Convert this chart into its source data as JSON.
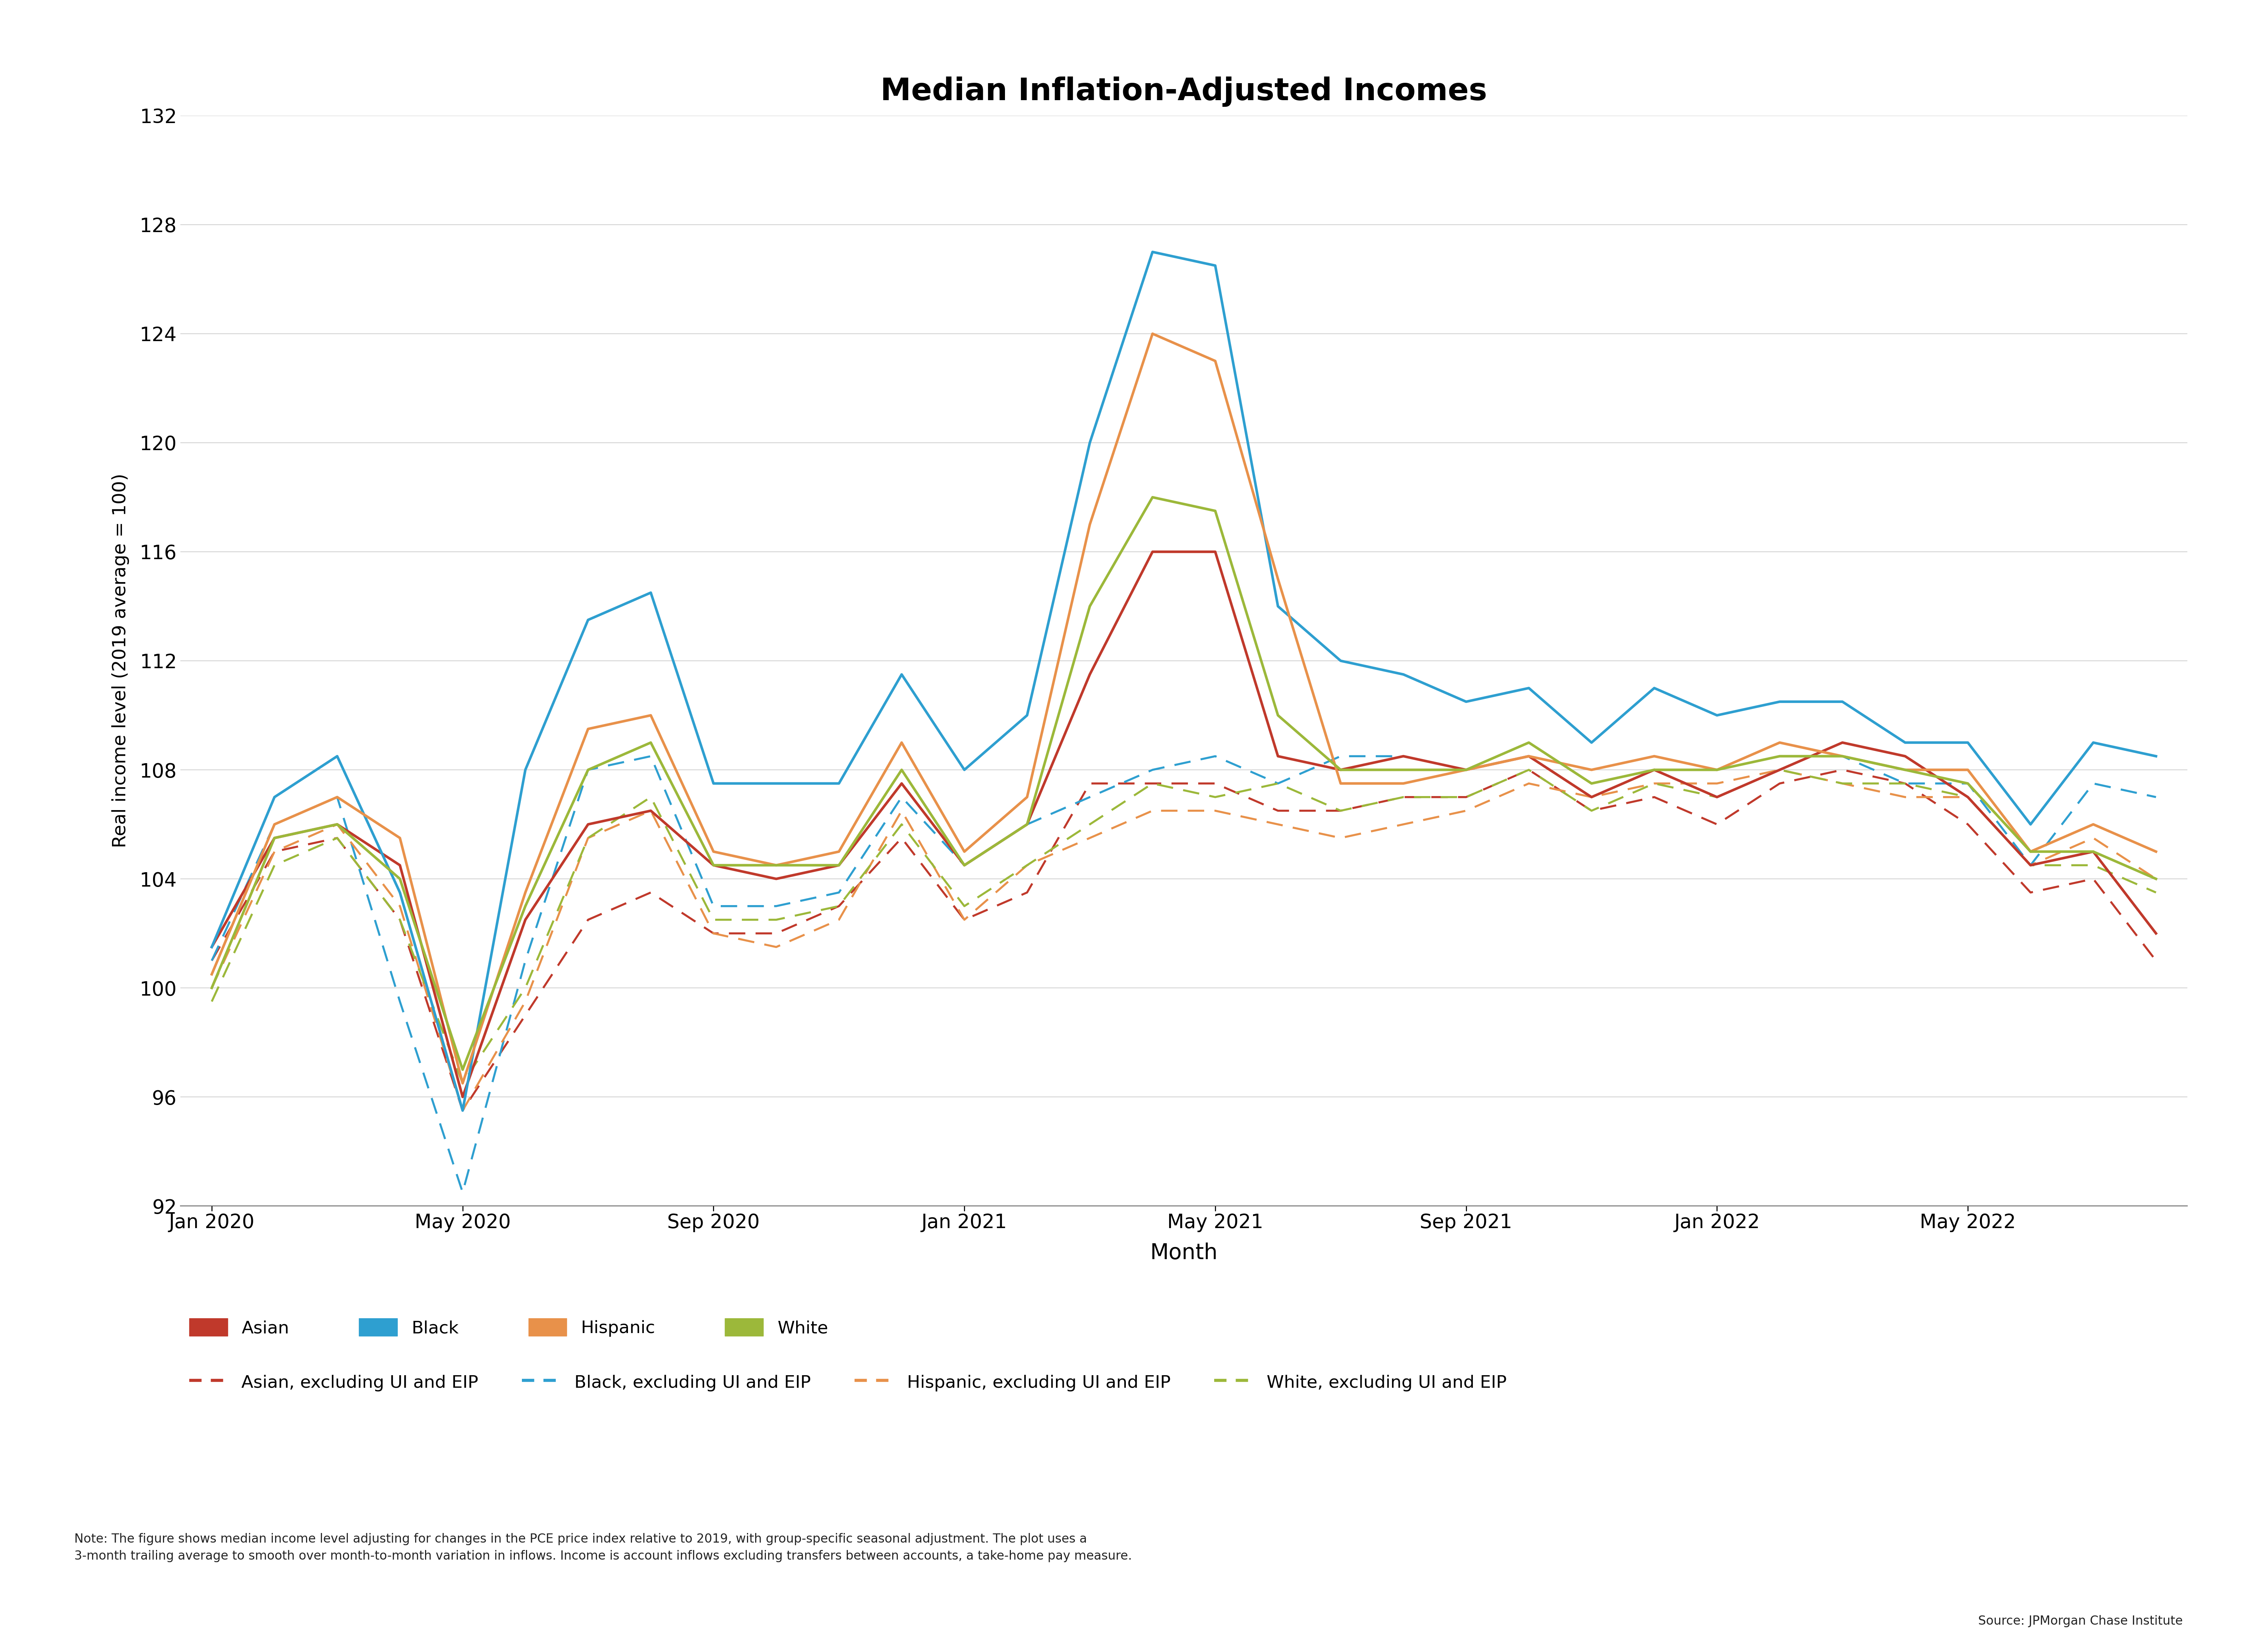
{
  "title": "Median Inflation-Adjusted Incomes",
  "xlabel": "Month",
  "ylabel": "Real income level (2019 average = 100)",
  "ylim": [
    92,
    132
  ],
  "yticks": [
    92,
    96,
    100,
    104,
    108,
    112,
    116,
    120,
    124,
    128,
    132
  ],
  "colors": {
    "Asian": "#C0392B",
    "Black": "#2E9FD0",
    "Hispanic": "#E8914A",
    "White": "#9CB83A"
  },
  "note": "Note: The figure shows median income level adjusting for changes in the PCE price index relative to 2019, with group-specific seasonal adjustment. The plot uses a\n3-month trailing average to smooth over month-to-month variation in inflows. Income is account inflows excluding transfers between accounts, a take-home pay measure.",
  "source": "Source: JPMorgan Chase Institute",
  "tick_positions": [
    0,
    4,
    8,
    12,
    16,
    20,
    24,
    28
  ],
  "tick_labels": [
    "Jan 2020",
    "May 2020",
    "Sep 2020",
    "Jan 2021",
    "May 2021",
    "Sep 2021",
    "Jan 2022",
    "May 2022"
  ],
  "Asian": [
    101.5,
    105.5,
    106.0,
    104.5,
    96.0,
    102.5,
    106.0,
    106.5,
    104.5,
    104.0,
    104.5,
    107.5,
    104.5,
    106.0,
    111.5,
    116.0,
    116.0,
    108.5,
    108.0,
    108.5,
    108.0,
    108.5,
    107.0,
    108.0,
    107.0,
    108.0,
    109.0,
    108.5,
    107.0,
    104.5,
    105.0,
    102.0
  ],
  "Asian_ex": [
    101.0,
    105.0,
    105.5,
    102.5,
    95.5,
    99.0,
    102.5,
    103.5,
    102.0,
    102.0,
    103.0,
    105.5,
    102.5,
    103.5,
    107.5,
    107.5,
    107.5,
    106.5,
    106.5,
    107.0,
    107.0,
    108.0,
    106.5,
    107.0,
    106.0,
    107.5,
    108.0,
    107.5,
    106.0,
    103.5,
    104.0,
    101.0
  ],
  "Black": [
    101.5,
    107.0,
    108.5,
    103.5,
    95.5,
    108.0,
    113.5,
    114.5,
    107.5,
    107.5,
    107.5,
    111.5,
    108.0,
    110.0,
    120.0,
    127.0,
    126.5,
    114.0,
    112.0,
    111.5,
    110.5,
    111.0,
    109.0,
    111.0,
    110.0,
    110.5,
    110.5,
    109.0,
    109.0,
    106.0,
    109.0,
    108.5
  ],
  "Black_ex": [
    101.0,
    106.0,
    107.0,
    99.5,
    92.5,
    101.0,
    108.0,
    108.5,
    103.0,
    103.0,
    103.5,
    107.0,
    104.5,
    106.0,
    107.0,
    108.0,
    108.5,
    107.5,
    108.5,
    108.5,
    108.0,
    108.5,
    107.0,
    108.0,
    108.0,
    108.5,
    108.5,
    107.5,
    107.5,
    104.5,
    107.5,
    107.0
  ],
  "Hispanic": [
    100.5,
    106.0,
    107.0,
    105.5,
    96.5,
    103.5,
    109.5,
    110.0,
    105.0,
    104.5,
    105.0,
    109.0,
    105.0,
    107.0,
    117.0,
    124.0,
    123.0,
    115.0,
    107.5,
    107.5,
    108.0,
    108.5,
    108.0,
    108.5,
    108.0,
    109.0,
    108.5,
    108.0,
    108.0,
    105.0,
    106.0,
    105.0
  ],
  "Hispanic_ex": [
    100.0,
    105.0,
    106.0,
    103.0,
    95.5,
    99.5,
    105.5,
    106.5,
    102.0,
    101.5,
    102.5,
    106.5,
    102.5,
    104.5,
    105.5,
    106.5,
    106.5,
    106.0,
    105.5,
    106.0,
    106.5,
    107.5,
    107.0,
    107.5,
    107.5,
    108.0,
    107.5,
    107.0,
    107.0,
    104.5,
    105.5,
    104.0
  ],
  "White": [
    100.0,
    105.5,
    106.0,
    104.0,
    97.0,
    103.0,
    108.0,
    109.0,
    104.5,
    104.5,
    104.5,
    108.0,
    104.5,
    106.0,
    114.0,
    118.0,
    117.5,
    110.0,
    108.0,
    108.0,
    108.0,
    109.0,
    107.5,
    108.0,
    108.0,
    108.5,
    108.5,
    108.0,
    107.5,
    105.0,
    105.0,
    104.0
  ],
  "White_ex": [
    99.5,
    104.5,
    105.5,
    102.5,
    96.5,
    100.0,
    105.5,
    107.0,
    102.5,
    102.5,
    103.0,
    106.0,
    103.0,
    104.5,
    106.0,
    107.5,
    107.0,
    107.5,
    106.5,
    107.0,
    107.0,
    108.0,
    106.5,
    107.5,
    107.0,
    108.0,
    107.5,
    107.5,
    107.0,
    104.5,
    104.5,
    103.5
  ]
}
